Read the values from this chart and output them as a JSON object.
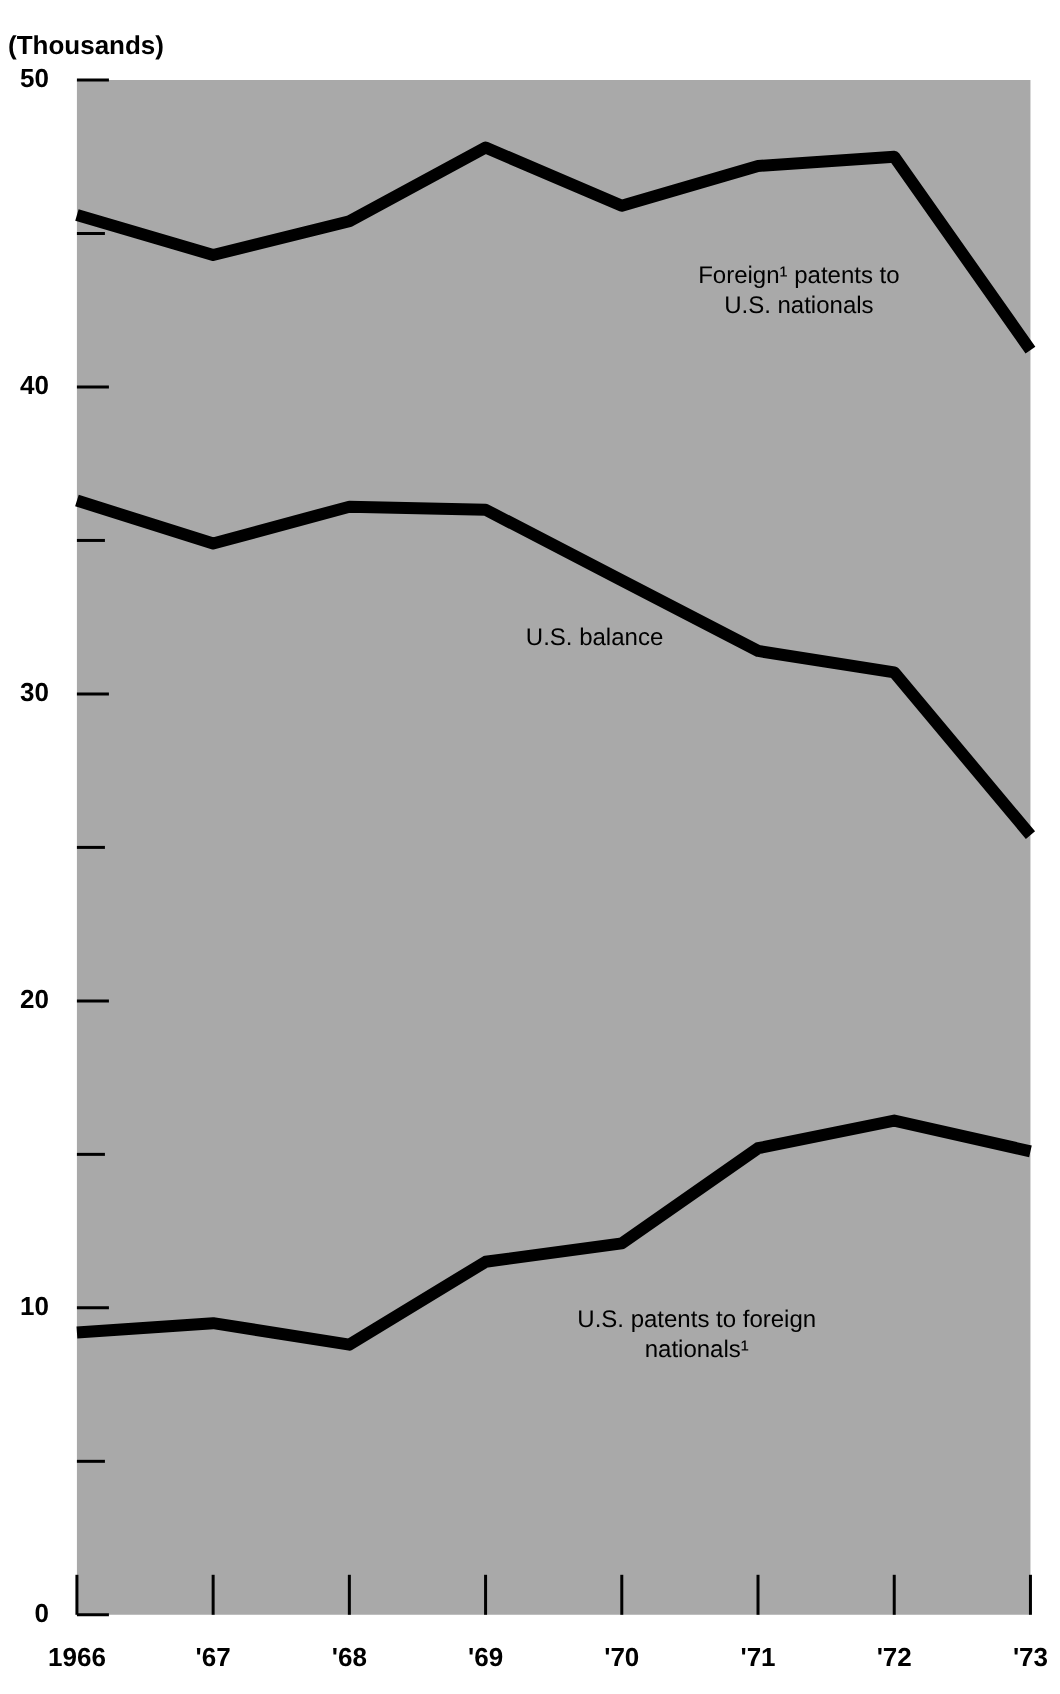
{
  "chart_data": {
    "type": "line",
    "ylabel": "(Thousands)",
    "categories": [
      "1966",
      "'67",
      "'68",
      "'69",
      "'70",
      "'71",
      "'72",
      "'73"
    ],
    "series": [
      {
        "name": "Foreign¹ patents to U.S. nationals",
        "color": "#000000",
        "values": [
          45.6,
          44.3,
          45.4,
          47.8,
          45.9,
          47.2,
          47.5,
          41.2
        ]
      },
      {
        "name": "U.S. balance",
        "color": "#000000",
        "values": [
          36.3,
          34.9,
          36.1,
          36.0,
          33.7,
          31.4,
          30.7,
          25.4
        ]
      },
      {
        "name": "U.S. patents to foreign nationals¹",
        "color": "#000000",
        "values": [
          9.2,
          9.5,
          8.8,
          11.5,
          12.1,
          15.2,
          16.1,
          15.1
        ]
      }
    ],
    "ylim": [
      0,
      50
    ],
    "yticks": [
      0,
      {
        "value": 5,
        "label": null
      },
      10,
      {
        "value": 15,
        "label": null
      },
      20,
      {
        "value": 25,
        "label": null
      },
      30,
      {
        "value": 35,
        "label": null
      },
      40,
      {
        "value": 45,
        "label": null
      },
      50
    ],
    "grid": false,
    "legend": false,
    "marker": "none",
    "line_style": "solid"
  }
}
